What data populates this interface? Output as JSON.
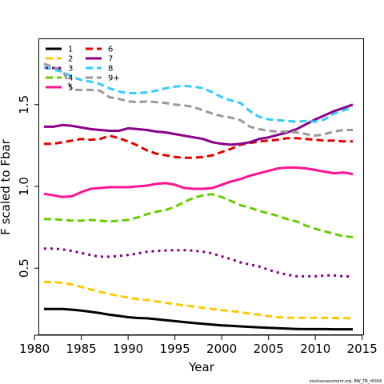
{
  "chart_data": {
    "type": "line",
    "xlabel": "Year",
    "ylabel": "F scaled to Fbar",
    "xlim": [
      1980.5,
      2015.2
    ],
    "ylim": [
      0.09,
      1.9
    ],
    "xticks": [
      1980,
      1985,
      1990,
      1995,
      2000,
      2005,
      2010,
      2015
    ],
    "yticks": [
      0.5,
      1.0,
      1.5
    ],
    "grid": false,
    "legend_position": "top-left",
    "footnote": "stockassessment.org, BW_TB_r6004",
    "x": [
      1981,
      1982,
      1983,
      1984,
      1985,
      1986,
      1987,
      1988,
      1989,
      1990,
      1991,
      1992,
      1993,
      1994,
      1995,
      1996,
      1997,
      1998,
      1999,
      2000,
      2001,
      2002,
      2003,
      2004,
      2005,
      2006,
      2007,
      2008,
      2009,
      2010,
      2011,
      2012,
      2013,
      2014
    ],
    "series": [
      {
        "name": "1",
        "color": "#000000",
        "dash": "solid",
        "values": [
          0.25,
          0.25,
          0.25,
          0.246,
          0.24,
          0.233,
          0.225,
          0.215,
          0.208,
          0.2,
          0.195,
          0.193,
          0.188,
          0.182,
          0.176,
          0.17,
          0.165,
          0.16,
          0.155,
          0.15,
          0.147,
          0.144,
          0.141,
          0.138,
          0.135,
          0.133,
          0.13,
          0.128,
          0.127,
          0.127,
          0.127,
          0.126,
          0.126,
          0.126
        ]
      },
      {
        "name": "2",
        "color": "#FFC800",
        "dash": "dashed",
        "values": [
          0.415,
          0.415,
          0.41,
          0.4,
          0.385,
          0.37,
          0.355,
          0.342,
          0.33,
          0.32,
          0.31,
          0.305,
          0.297,
          0.288,
          0.28,
          0.272,
          0.265,
          0.258,
          0.25,
          0.243,
          0.238,
          0.23,
          0.222,
          0.215,
          0.207,
          0.2,
          0.197,
          0.196,
          0.196,
          0.196,
          0.196,
          0.195,
          0.194,
          0.194
        ]
      },
      {
        "name": "3",
        "color": "#800080",
        "dash": "dotted",
        "values": [
          0.62,
          0.62,
          0.615,
          0.605,
          0.593,
          0.58,
          0.57,
          0.57,
          0.575,
          0.58,
          0.59,
          0.6,
          0.605,
          0.608,
          0.61,
          0.61,
          0.607,
          0.6,
          0.59,
          0.572,
          0.555,
          0.535,
          0.522,
          0.51,
          0.49,
          0.473,
          0.46,
          0.45,
          0.45,
          0.45,
          0.455,
          0.456,
          0.45,
          0.448
        ]
      },
      {
        "name": "4",
        "color": "#66CC00",
        "dash": "dashed",
        "values": [
          0.8,
          0.8,
          0.795,
          0.79,
          0.79,
          0.795,
          0.79,
          0.785,
          0.79,
          0.795,
          0.81,
          0.83,
          0.845,
          0.855,
          0.875,
          0.905,
          0.93,
          0.945,
          0.952,
          0.935,
          0.91,
          0.885,
          0.87,
          0.85,
          0.835,
          0.82,
          0.8,
          0.785,
          0.76,
          0.74,
          0.725,
          0.71,
          0.695,
          0.69
        ]
      },
      {
        "name": "5",
        "color": "#FF1493",
        "dash": "solid",
        "values": [
          0.955,
          0.945,
          0.935,
          0.94,
          0.965,
          0.985,
          0.99,
          0.995,
          0.995,
          0.995,
          1.0,
          1.005,
          1.015,
          1.02,
          1.01,
          0.99,
          0.985,
          0.985,
          0.99,
          1.01,
          1.03,
          1.045,
          1.065,
          1.08,
          1.095,
          1.11,
          1.115,
          1.115,
          1.11,
          1.1,
          1.09,
          1.08,
          1.085,
          1.075
        ]
      },
      {
        "name": "6",
        "color": "#E00000",
        "dash": "dashed",
        "values": [
          1.26,
          1.26,
          1.27,
          1.28,
          1.29,
          1.285,
          1.29,
          1.31,
          1.295,
          1.275,
          1.25,
          1.22,
          1.2,
          1.19,
          1.18,
          1.175,
          1.175,
          1.18,
          1.19,
          1.21,
          1.23,
          1.255,
          1.265,
          1.275,
          1.28,
          1.285,
          1.295,
          1.295,
          1.29,
          1.285,
          1.28,
          1.28,
          1.275,
          1.275
        ]
      },
      {
        "name": "7",
        "color": "#8B008B",
        "dash": "solid",
        "values": [
          1.365,
          1.365,
          1.375,
          1.37,
          1.36,
          1.35,
          1.345,
          1.34,
          1.34,
          1.355,
          1.35,
          1.345,
          1.335,
          1.33,
          1.32,
          1.31,
          1.3,
          1.29,
          1.27,
          1.26,
          1.255,
          1.26,
          1.27,
          1.29,
          1.3,
          1.315,
          1.33,
          1.35,
          1.38,
          1.41,
          1.435,
          1.46,
          1.48,
          1.5
        ]
      },
      {
        "name": "8",
        "color": "#33CCFF",
        "dash": "dashed",
        "values": [
          1.73,
          1.715,
          1.7,
          1.67,
          1.65,
          1.64,
          1.625,
          1.6,
          1.58,
          1.57,
          1.57,
          1.575,
          1.585,
          1.6,
          1.61,
          1.615,
          1.61,
          1.6,
          1.575,
          1.545,
          1.525,
          1.51,
          1.46,
          1.425,
          1.41,
          1.405,
          1.4,
          1.395,
          1.4,
          1.395,
          1.41,
          1.445,
          1.465,
          1.48
        ]
      },
      {
        "name": "9+",
        "color": "#999999",
        "dash": "dashed",
        "values": [
          1.75,
          1.73,
          1.71,
          1.59,
          1.59,
          1.59,
          1.585,
          1.545,
          1.535,
          1.52,
          1.515,
          1.52,
          1.515,
          1.51,
          1.5,
          1.495,
          1.485,
          1.465,
          1.445,
          1.43,
          1.42,
          1.405,
          1.365,
          1.35,
          1.34,
          1.335,
          1.335,
          1.33,
          1.32,
          1.31,
          1.32,
          1.335,
          1.345,
          1.345
        ]
      }
    ]
  }
}
